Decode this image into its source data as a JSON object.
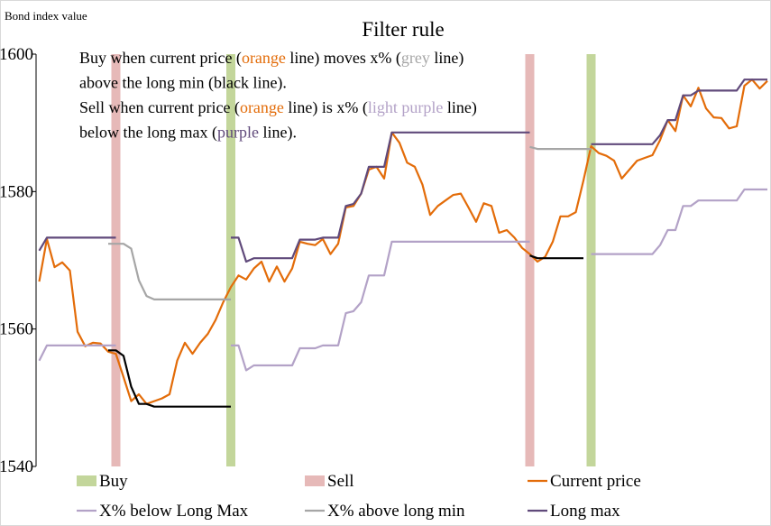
{
  "chart_data": {
    "type": "line",
    "title": "Filter rule",
    "y_label": "Bond index value",
    "annotation": [
      [
        {
          "text": "Buy when current price (",
          "color": "#000000"
        },
        {
          "text": "orange",
          "color": "#e36c09"
        },
        {
          "text": " line) moves x% (",
          "color": "#000000"
        },
        {
          "text": "grey",
          "color": "#a6a6a6"
        },
        {
          "text": " line)",
          "color": "#000000"
        }
      ],
      [
        {
          "text": "above the long min (black line).",
          "color": "#000000"
        }
      ],
      [
        {
          "text": "Sell when current price (",
          "color": "#000000"
        },
        {
          "text": "orange",
          "color": "#e36c09"
        },
        {
          "text": " line) is x% (",
          "color": "#000000"
        },
        {
          "text": "light purple",
          "color": "#b3a2c7"
        },
        {
          "text": " line)",
          "color": "#000000"
        }
      ],
      [
        {
          "text": "below the long max (",
          "color": "#000000"
        },
        {
          "text": "purple",
          "color": "#604a7b"
        },
        {
          "text": " line).",
          "color": "#000000"
        }
      ]
    ],
    "ylim": [
      1540,
      1600
    ],
    "yticks": [
      1540,
      1560,
      1580,
      1600
    ],
    "categories": [
      null,
      null,
      null,
      null,
      null,
      null,
      null,
      null,
      null,
      null,
      null,
      null,
      null,
      null,
      null,
      null,
      null,
      null,
      null,
      null,
      null,
      null,
      null,
      null,
      null,
      null,
      null,
      null,
      null,
      null,
      null,
      null,
      null,
      null,
      null,
      null,
      null,
      null,
      null,
      null,
      null,
      null,
      null,
      null,
      null,
      null,
      null,
      null,
      null,
      null,
      null,
      null,
      null,
      null,
      null,
      null,
      null,
      null,
      null,
      null,
      null,
      null,
      null,
      null,
      null,
      null,
      null,
      null,
      null,
      null,
      null,
      null,
      null,
      null,
      null,
      null,
      null,
      null,
      null,
      null,
      null,
      null,
      null,
      null,
      null,
      null,
      null,
      null,
      null,
      null,
      null,
      null,
      null,
      null,
      null,
      null
    ],
    "series": [
      {
        "name": "Buy",
        "type": "bar",
        "color": "#c3d69b",
        "values": [
          null,
          null,
          null,
          null,
          null,
          null,
          null,
          null,
          null,
          null,
          null,
          null,
          null,
          null,
          null,
          null,
          null,
          null,
          null,
          null,
          null,
          null,
          null,
          null,
          null,
          1600,
          null,
          null,
          null,
          null,
          null,
          null,
          null,
          null,
          null,
          null,
          null,
          null,
          null,
          null,
          null,
          null,
          null,
          null,
          null,
          null,
          null,
          null,
          null,
          null,
          null,
          null,
          null,
          null,
          null,
          null,
          null,
          null,
          null,
          null,
          null,
          null,
          null,
          null,
          null,
          null,
          null,
          null,
          null,
          null,
          null,
          null,
          1600,
          null,
          null,
          null,
          null,
          null,
          null,
          null,
          null,
          null,
          null,
          null,
          null,
          null,
          null,
          null,
          null,
          null,
          null,
          null,
          null,
          null,
          null,
          null
        ]
      },
      {
        "name": "Sell",
        "type": "bar",
        "color": "#e6b9b8",
        "values": [
          null,
          null,
          null,
          null,
          null,
          null,
          null,
          null,
          null,
          null,
          1600,
          null,
          null,
          null,
          null,
          null,
          null,
          null,
          null,
          null,
          null,
          null,
          null,
          null,
          null,
          null,
          null,
          null,
          null,
          null,
          null,
          null,
          null,
          null,
          null,
          null,
          null,
          null,
          null,
          null,
          null,
          null,
          null,
          null,
          null,
          null,
          null,
          null,
          null,
          null,
          null,
          null,
          null,
          null,
          null,
          null,
          null,
          null,
          null,
          null,
          null,
          null,
          null,
          null,
          1600,
          null,
          null,
          null,
          null,
          null,
          null,
          null,
          null,
          null,
          null,
          null,
          null,
          null,
          null,
          null,
          null,
          null,
          null,
          null,
          null,
          null,
          null,
          null,
          null,
          null,
          null,
          null,
          null,
          null,
          null,
          null
        ]
      },
      {
        "name": "Current price",
        "type": "line",
        "color": "#e36c09",
        "values": [
          1566.9,
          1573.1,
          1569,
          1569.7,
          1568.5,
          1559.6,
          1557.5,
          1558,
          1557.9,
          1556.7,
          1556.4,
          1553,
          1549.5,
          1550.5,
          1549.1,
          1549.5,
          1549.9,
          1550.5,
          1555.4,
          1558,
          1556.4,
          1558,
          1559.3,
          1561.3,
          1563.9,
          1566.1,
          1567.8,
          1567.2,
          1568.8,
          1569.8,
          1566.9,
          1569.1,
          1566.9,
          1568.8,
          1572.7,
          1572.4,
          1572.2,
          1573.1,
          1570.9,
          1572.4,
          1577.7,
          1577.9,
          1579.7,
          1583.2,
          1583.6,
          1581.9,
          1588.6,
          1587.1,
          1584.2,
          1583.6,
          1581,
          1576.6,
          1577.9,
          1578.7,
          1579.5,
          1579.7,
          1577.7,
          1575.6,
          1578.3,
          1577.9,
          1574,
          1574.4,
          1573.3,
          1571.8,
          1570.9,
          1569.8,
          1570.5,
          1572.7,
          1576.4,
          1576.4,
          1577,
          1581.6,
          1586.6,
          1585.6,
          1585.2,
          1584.5,
          1581.9,
          1583.2,
          1584.5,
          1584.9,
          1585.3,
          1587.5,
          1590.4,
          1588.8,
          1594,
          1592.4,
          1595.1,
          1592.1,
          1590.8,
          1590.7,
          1589.2,
          1589.5,
          1595.4,
          1596.3,
          1595,
          1596.1
        ]
      },
      {
        "name": "X% below Long Max",
        "type": "line",
        "color": "#b3a2c7",
        "values": [
          1555.4,
          1557.6,
          1557.6,
          1557.6,
          1557.6,
          1557.6,
          1557.6,
          1557.6,
          1557.6,
          1557.6,
          1557.6,
          null,
          null,
          null,
          null,
          null,
          null,
          null,
          null,
          null,
          null,
          null,
          null,
          null,
          null,
          1557.6,
          1557.6,
          1554,
          1554.7,
          1554.7,
          1554.7,
          1554.7,
          1554.7,
          1554.7,
          1557.2,
          1557.2,
          1557.2,
          1557.6,
          1557.6,
          1557.6,
          1562.3,
          1562.6,
          1563.9,
          1567.8,
          1567.8,
          1567.8,
          1572.7,
          1572.7,
          1572.7,
          1572.7,
          1572.7,
          1572.7,
          1572.7,
          1572.7,
          1572.7,
          1572.7,
          1572.7,
          1572.7,
          1572.7,
          1572.7,
          1572.7,
          1572.7,
          1572.7,
          1572.7,
          1572.7,
          null,
          null,
          null,
          null,
          null,
          null,
          null,
          1570.9,
          1570.9,
          1570.9,
          1570.9,
          1570.9,
          1570.9,
          1570.9,
          1570.9,
          1570.9,
          1572.2,
          1574.4,
          1574.4,
          1577.9,
          1577.9,
          1578.7,
          1578.7,
          1578.7,
          1578.7,
          1578.7,
          1578.7,
          1580.3,
          1580.3,
          1580.3,
          1580.3
        ]
      },
      {
        "name": "X% above long min",
        "type": "line",
        "color": "#a6a6a6",
        "values": [
          null,
          null,
          null,
          null,
          null,
          null,
          null,
          null,
          null,
          1572.4,
          1572.4,
          1572.4,
          1571.7,
          1567.1,
          1564.8,
          1564.3,
          1564.3,
          1564.3,
          1564.3,
          1564.3,
          1564.3,
          1564.3,
          1564.3,
          1564.3,
          1564.3,
          1564.3,
          null,
          null,
          null,
          null,
          null,
          null,
          null,
          null,
          null,
          null,
          null,
          null,
          null,
          null,
          null,
          null,
          null,
          null,
          null,
          null,
          null,
          null,
          null,
          null,
          null,
          null,
          null,
          null,
          null,
          null,
          null,
          null,
          null,
          null,
          null,
          null,
          null,
          null,
          1586.5,
          1586.2,
          1586.2,
          1586.2,
          1586.2,
          1586.2,
          1586.2,
          1586.2,
          1586.2,
          null,
          null,
          null,
          null,
          null,
          null,
          null,
          null,
          null,
          null,
          null,
          null,
          null,
          null,
          null,
          null,
          null,
          null,
          null,
          null,
          null,
          null,
          null
        ]
      },
      {
        "name": "Long max",
        "type": "line",
        "color": "#604a7b",
        "values": [
          1571.4,
          1573.3,
          1573.3,
          1573.3,
          1573.3,
          1573.3,
          1573.3,
          1573.3,
          1573.3,
          1573.3,
          1573.3,
          null,
          null,
          null,
          null,
          null,
          null,
          null,
          null,
          null,
          null,
          null,
          null,
          null,
          null,
          1573.3,
          1573.3,
          1569.8,
          1570.3,
          1570.3,
          1570.3,
          1570.3,
          1570.3,
          1570.3,
          1573,
          1573,
          1573,
          1573.3,
          1573.3,
          1573.3,
          1577.9,
          1578.2,
          1579.7,
          1583.6,
          1583.6,
          1583.6,
          1588.6,
          1588.6,
          1588.6,
          1588.6,
          1588.6,
          1588.6,
          1588.6,
          1588.6,
          1588.6,
          1588.6,
          1588.6,
          1588.6,
          1588.6,
          1588.6,
          1588.6,
          1588.6,
          1588.6,
          1588.6,
          1588.6,
          null,
          null,
          null,
          null,
          null,
          null,
          null,
          1586.9,
          1586.9,
          1586.9,
          1586.9,
          1586.9,
          1586.9,
          1586.9,
          1586.9,
          1586.9,
          1588.2,
          1590.4,
          1590.4,
          1594,
          1594,
          1594.7,
          1594.7,
          1594.7,
          1594.7,
          1594.7,
          1594.7,
          1596.3,
          1596.3,
          1596.3,
          1596.3
        ]
      },
      {
        "type": "line",
        "color": "#000000",
        "values": [
          null,
          null,
          null,
          null,
          null,
          null,
          null,
          null,
          null,
          1556.9,
          1556.9,
          1556.1,
          1551.6,
          1549.1,
          1549.1,
          1548.7,
          1548.7,
          1548.7,
          1548.7,
          1548.7,
          1548.7,
          1548.7,
          1548.7,
          1548.7,
          1548.7,
          1548.7,
          null,
          null,
          null,
          null,
          null,
          null,
          null,
          null,
          null,
          null,
          null,
          null,
          null,
          null,
          null,
          null,
          null,
          null,
          null,
          null,
          null,
          null,
          null,
          null,
          null,
          null,
          null,
          null,
          null,
          null,
          null,
          null,
          null,
          null,
          null,
          null,
          null,
          null,
          1570.7,
          1570.3,
          1570.3,
          1570.3,
          1570.3,
          1570.3,
          1570.3,
          1570.3,
          null,
          null,
          null,
          null,
          null,
          null,
          null,
          null,
          null,
          null,
          null,
          null,
          null,
          null,
          null,
          null,
          null,
          null,
          null,
          null,
          null,
          null,
          null,
          null
        ]
      }
    ]
  }
}
